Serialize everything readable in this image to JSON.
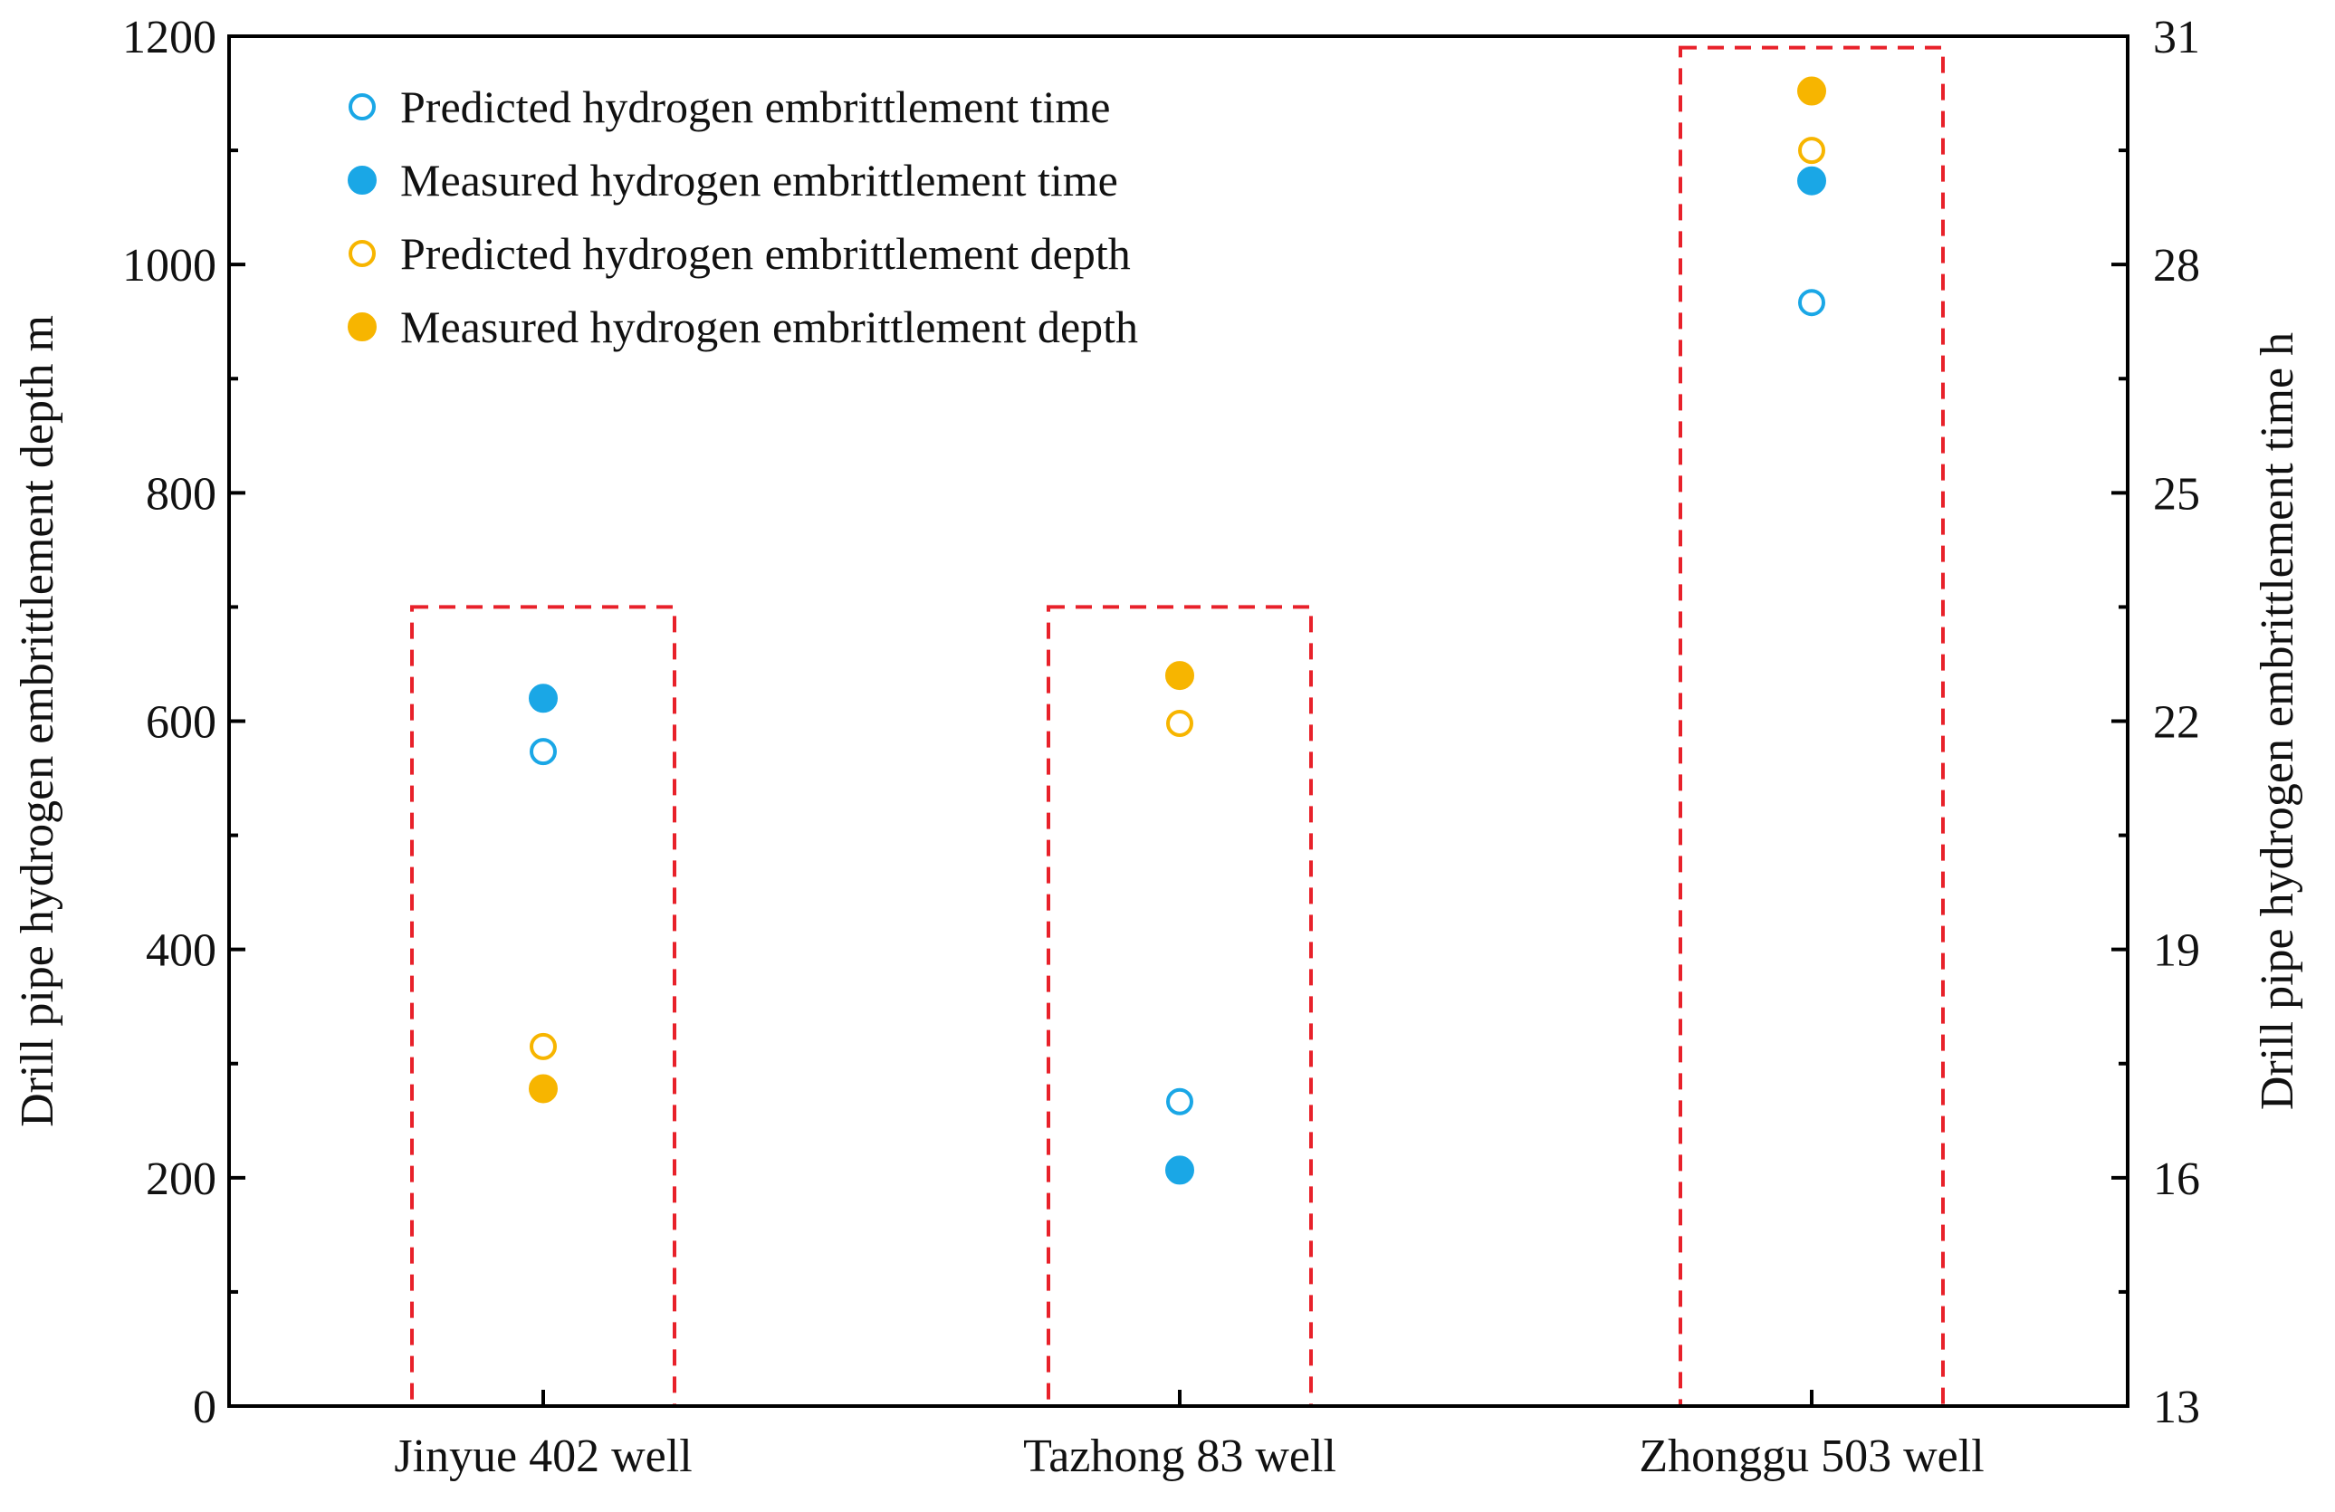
{
  "chart_data": {
    "type": "scatter",
    "categories": [
      "Jinyue 402 well",
      "Tazhong 83 well",
      "Zhonggu 503 well"
    ],
    "y_left": {
      "label": "Drill pipe hydrogen embrittlement depth m",
      "range": [
        0,
        1200
      ],
      "ticks": [
        0,
        200,
        400,
        600,
        800,
        1000,
        1200
      ],
      "tick_labels": [
        "0",
        "200",
        "400",
        "600",
        "800",
        "1000",
        "1200"
      ]
    },
    "y_right": {
      "label": "Drill pipe hydrogen embrittlement time h",
      "range": [
        13,
        31
      ],
      "ticks": [
        13,
        16,
        19,
        22,
        25,
        28,
        31
      ],
      "tick_labels": [
        "13",
        "16",
        "19",
        "22",
        "25",
        "28",
        "31"
      ]
    },
    "series": [
      {
        "name": "Predicted hydrogen embrittlement time",
        "axis": "right",
        "marker": "open",
        "color": "#1aa7e6",
        "values": [
          21.6,
          17.0,
          27.5
        ]
      },
      {
        "name": "Measured hydrogen embrittlement time",
        "axis": "right",
        "marker": "filled",
        "color": "#1aa7e6",
        "values": [
          22.3,
          16.1,
          29.1
        ]
      },
      {
        "name": "Predicted hydrogen embrittlement depth",
        "axis": "left",
        "marker": "open",
        "color": "#f7b500",
        "values": [
          315,
          598,
          1100
        ]
      },
      {
        "name": "Measured hydrogen embrittlement depth",
        "axis": "left",
        "marker": "filled",
        "color": "#f7b500",
        "values": [
          278,
          640,
          1152
        ]
      }
    ],
    "highlight_boxes": {
      "style": "dashed",
      "color": "#e8212a",
      "top_values_left_axis": [
        700,
        700,
        1190
      ]
    },
    "legend_position": "top-left",
    "grid": false
  }
}
